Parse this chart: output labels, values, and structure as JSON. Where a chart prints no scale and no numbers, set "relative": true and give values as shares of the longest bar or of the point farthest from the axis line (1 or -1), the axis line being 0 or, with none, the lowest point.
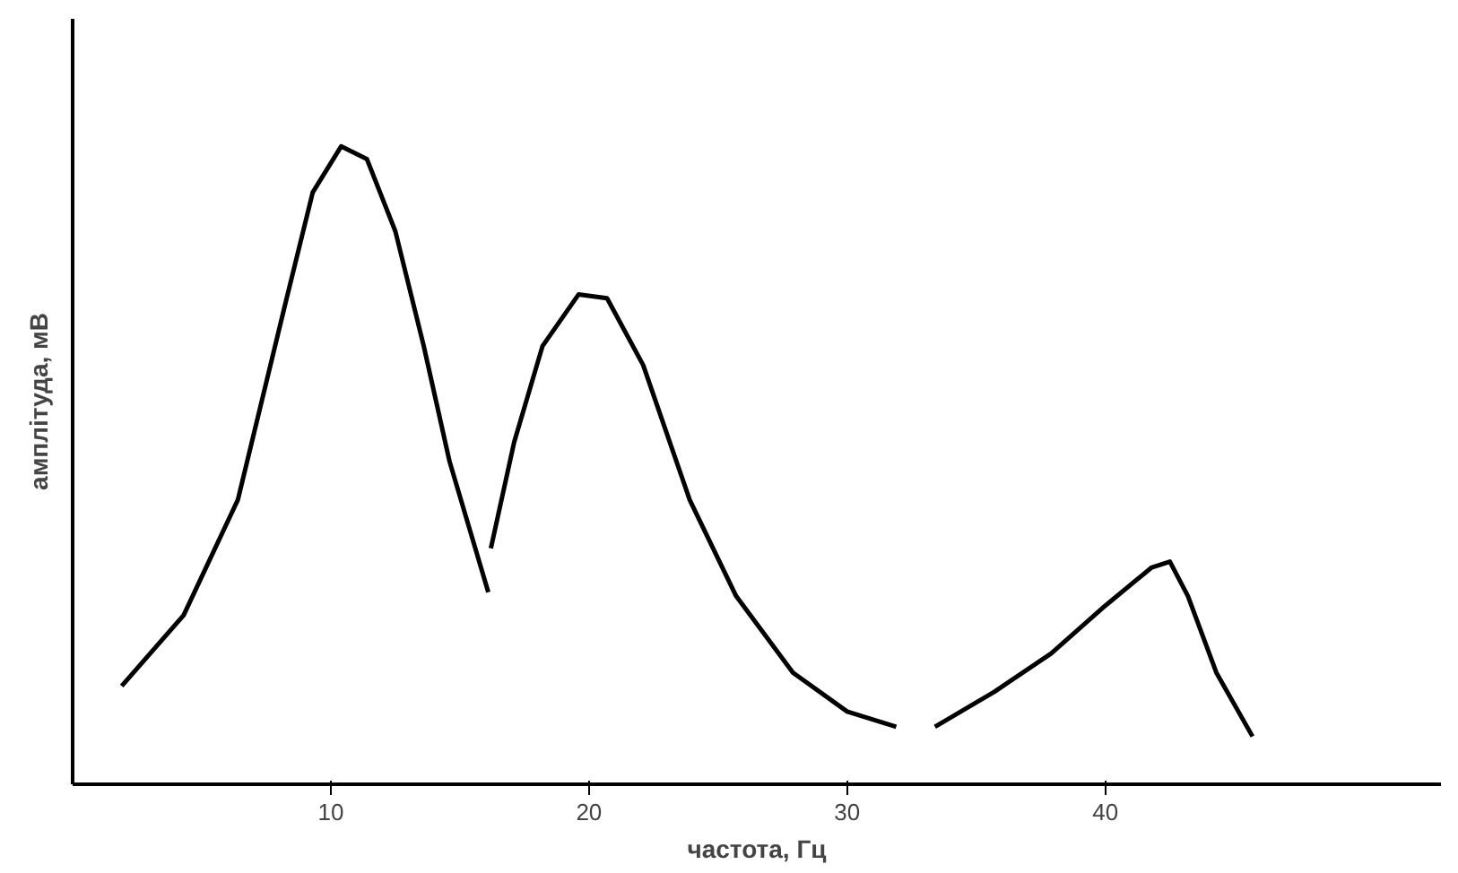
{
  "chart_data": {
    "type": "line",
    "relative": true,
    "xlabel": "частота, Гц",
    "ylabel": "амплітуда, мВ",
    "xlim": [
      0,
      53
    ],
    "xticks": [
      10,
      20,
      30,
      40
    ],
    "grid": false,
    "marker": "none",
    "line_style": "solid",
    "series": [
      {
        "color": "#000000",
        "x": [
          1.9,
          4.3,
          6.4,
          8.2,
          9.3,
          10.4,
          11.4,
          12.5,
          13.6,
          14.6,
          16.1
        ],
        "values": [
          0.154,
          0.265,
          0.446,
          0.747,
          0.928,
          1.0,
          0.98,
          0.867,
          0.687,
          0.506,
          0.301
        ]
      },
      {
        "color": "#000000",
        "x": [
          16.2,
          17.1,
          18.2,
          19.6,
          20.7,
          22.1,
          23.9,
          25.7,
          27.9,
          30.0,
          31.9
        ],
        "values": [
          0.37,
          0.536,
          0.687,
          0.768,
          0.762,
          0.657,
          0.446,
          0.295,
          0.175,
          0.114,
          0.09
        ]
      },
      {
        "color": "#000000",
        "x": [
          33.4,
          35.7,
          37.9,
          40.0,
          41.8,
          42.5,
          43.2,
          44.3,
          45.7
        ],
        "values": [
          0.09,
          0.145,
          0.205,
          0.28,
          0.34,
          0.349,
          0.295,
          0.175,
          0.075
        ]
      }
    ]
  }
}
